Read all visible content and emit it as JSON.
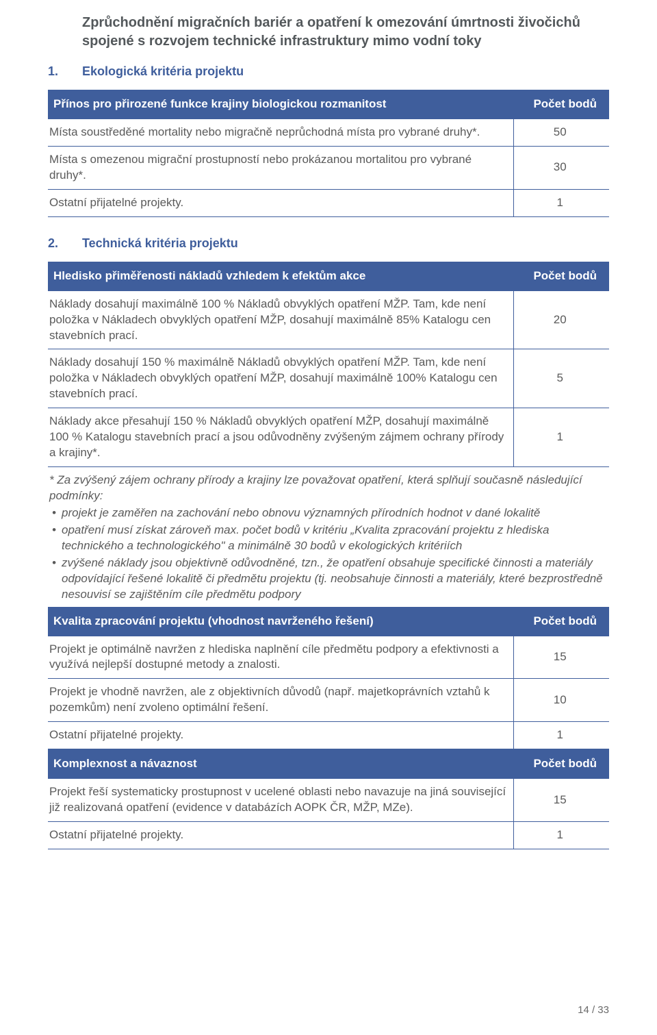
{
  "title": {
    "line1": "Zprůchodnění migračních bariér a opatření k omezování úmrtnosti živočichů",
    "line2": "spojené s rozvojem technické infrastruktury mimo vodní toky"
  },
  "section1": {
    "num": "1.",
    "label": "Ekologická kritéria projektu"
  },
  "section2": {
    "num": "2.",
    "label": "Technická kritéria projektu"
  },
  "table1": {
    "header": {
      "left": "Přínos pro přirozené funkce krajiny biologickou rozmanitost",
      "right": "Počet bodů"
    },
    "rows": [
      {
        "text": "Místa soustředěné mortality nebo migračně neprůchodná místa pro vybrané druhy*.",
        "pts": "50"
      },
      {
        "text": "Místa s omezenou migrační prostupností nebo prokázanou mortalitou pro vybrané druhy*.",
        "pts": "30"
      },
      {
        "text": "Ostatní přijatelné projekty.",
        "pts": "1"
      }
    ]
  },
  "table2": {
    "h1": {
      "left": "Hledisko přiměřenosti nákladů vzhledem k efektům akce",
      "right": "Počet bodů"
    },
    "r1": [
      {
        "text": "Náklady dosahují maximálně 100 % Nákladů obvyklých opatření MŽP. Tam, kde není položka v Nákladech obvyklých opatření MŽP, dosahují maximálně 85% Katalogu cen stavebních prací.",
        "pts": "20"
      },
      {
        "text": "Náklady dosahují 150 % maximálně Nákladů obvyklých opatření MŽP. Tam, kde není položka v Nákladech obvyklých opatření MŽP, dosahují maximálně 100% Katalogu cen stavebních prací.",
        "pts": "5"
      },
      {
        "text": "Náklady akce přesahují 150 % Nákladů obvyklých opatření MŽP, dosahují maximálně 100 % Katalogu stavebních prací a jsou odůvodněny zvýšeným zájmem ochrany přírody a krajiny*.",
        "pts": "1"
      }
    ],
    "note_intro": "* Za zvýšený zájem ochrany přírody a krajiny lze považovat opatření, která splňují současně následující podmínky:",
    "note_bullets": [
      "projekt je zaměřen na zachování nebo obnovu významných přírodních hodnot v dané lokalitě",
      "opatření musí získat zároveň max. počet bodů v kritériu „Kvalita zpracování projektu z hlediska technického a technologického\" a minimálně 30 bodů v ekologických kritériích",
      "zvýšené náklady jsou objektivně odůvodněné, tzn., že opatření obsahuje specifické činnosti a materiály odpovídající řešené lokalitě či předmětu projektu (tj. neobsahuje činnosti a materiály, které bezprostředně nesouvisí se zajištěním cíle předmětu podpory"
    ],
    "h2": {
      "left": "Kvalita zpracování projektu (vhodnost navrženého řešení)",
      "right": "Počet bodů"
    },
    "r2": [
      {
        "text": "Projekt je optimálně navržen z hlediska naplnění cíle předmětu podpory a efektivnosti a využívá nejlepší dostupné metody a znalosti.",
        "pts": "15"
      },
      {
        "text": "Projekt je vhodně navržen, ale z objektivních důvodů (např. majetkoprávních vztahů k pozemkům) není zvoleno optimální řešení.",
        "pts": "10"
      },
      {
        "text": "Ostatní přijatelné projekty.",
        "pts": "1"
      }
    ],
    "h3": {
      "left": "Komplexnost a návaznost",
      "right": "Počet bodů"
    },
    "r3": [
      {
        "text": "Projekt řeší systematicky prostupnost v ucelené oblasti nebo navazuje na jiná související již realizovaná opatření  (evidence v databázích AOPK ČR, MŽP, MZe).",
        "pts": "15"
      },
      {
        "text": "Ostatní přijatelné projekty.",
        "pts": "1"
      }
    ]
  },
  "footer": {
    "page": "14 / 33"
  },
  "colors": {
    "header_bg": "#3f5e9c",
    "header_text": "#ffffff",
    "body_text": "#5a5a5a",
    "section_text": "#3f5e9c",
    "border": "#3f5e9c"
  }
}
